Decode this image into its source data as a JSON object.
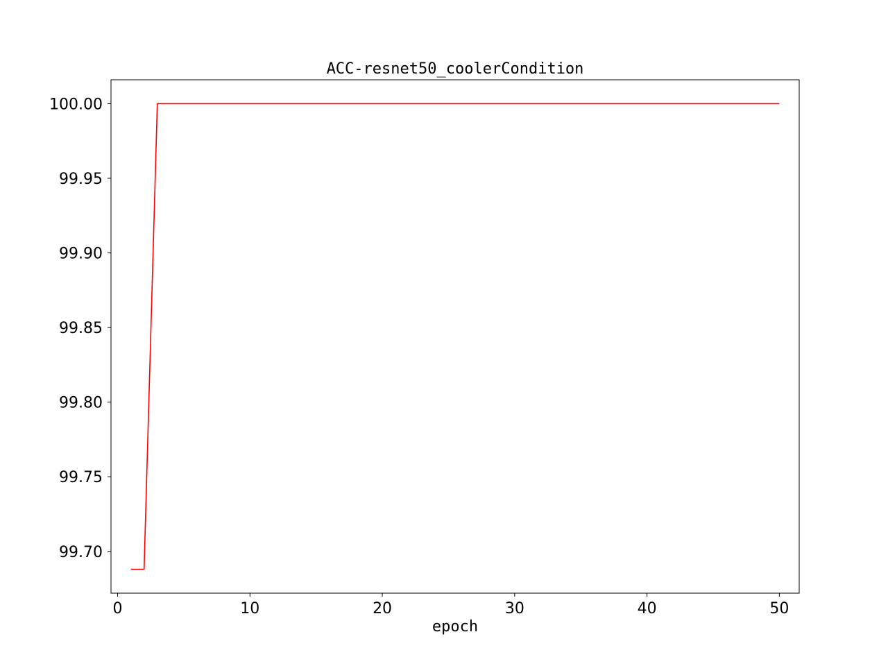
{
  "chart_data": {
    "type": "line",
    "title": "ACC-resnet50_coolerCondition",
    "xlabel": "epoch",
    "ylabel": "",
    "xlim": [
      -0.5,
      51.5
    ],
    "ylim": [
      99.672,
      100.016
    ],
    "x_ticks": [
      0,
      10,
      20,
      30,
      40,
      50
    ],
    "x_tick_labels": [
      "0",
      "10",
      "20",
      "30",
      "40",
      "50"
    ],
    "y_ticks": [
      99.7,
      99.75,
      99.8,
      99.85,
      99.9,
      99.95,
      100.0
    ],
    "y_tick_labels": [
      "99.70",
      "99.75",
      "99.80",
      "99.85",
      "99.90",
      "99.95",
      "100.00"
    ],
    "grid": false,
    "series": [
      {
        "color": "#ff0000",
        "x": [
          1,
          2,
          3,
          4,
          5,
          6,
          7,
          8,
          9,
          10,
          11,
          12,
          13,
          14,
          15,
          16,
          17,
          18,
          19,
          20,
          21,
          22,
          23,
          24,
          25,
          26,
          27,
          28,
          29,
          30,
          31,
          32,
          33,
          34,
          35,
          36,
          37,
          38,
          39,
          40,
          41,
          42,
          43,
          44,
          45,
          46,
          47,
          48,
          49,
          50
        ],
        "y": [
          99.688,
          99.688,
          100,
          100,
          100,
          100,
          100,
          100,
          100,
          100,
          100,
          100,
          100,
          100,
          100,
          100,
          100,
          100,
          100,
          100,
          100,
          100,
          100,
          100,
          100,
          100,
          100,
          100,
          100,
          100,
          100,
          100,
          100,
          100,
          100,
          100,
          100,
          100,
          100,
          100,
          100,
          100,
          100,
          100,
          100,
          100,
          100,
          100,
          100,
          100
        ]
      }
    ]
  }
}
